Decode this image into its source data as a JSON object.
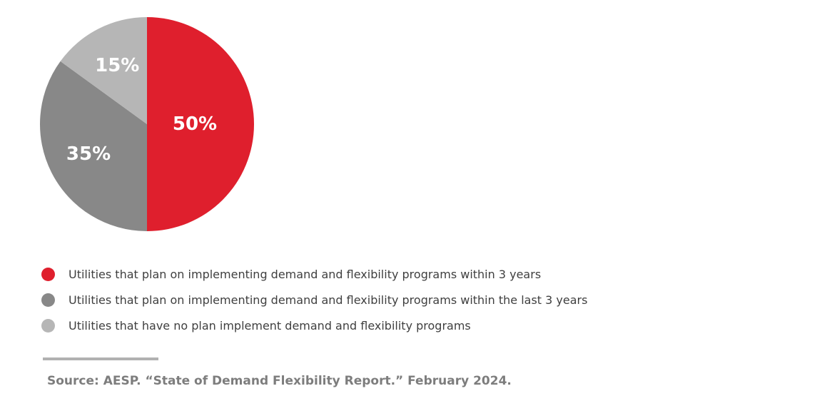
{
  "chart_data": {
    "type": "pie",
    "title": "",
    "slices": [
      {
        "label": "Utilities that plan on implementing demand and flexibility programs within 3 years",
        "value": 50,
        "value_label": "50%",
        "color": "#df1f2d"
      },
      {
        "label": "Utilities that plan on implementing demand and flexibility programs within the last 3 years",
        "value": 35,
        "value_label": "35%",
        "color": "#888888"
      },
      {
        "label": "Utilities that have no plan implement demand and flexibility programs",
        "value": 15,
        "value_label": "15%",
        "color": "#b6b6b6"
      }
    ],
    "legend_position": "bottom-left"
  },
  "source": "Source: AESP. “State of Demand Flexibility Report.” February 2024."
}
